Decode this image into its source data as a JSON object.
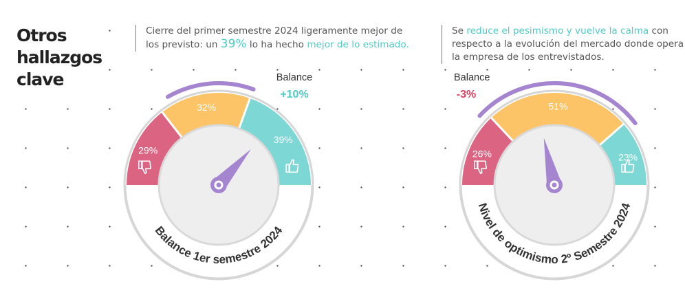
{
  "heading": "Otros\nhallazgos\nclave",
  "notes": [
    {
      "before": "Cierre del primer semestre 2024 ligeramente mejor de los previsto: un ",
      "highlight1": "39%",
      "middle": " lo ha hecho ",
      "highlight2": "mejor de lo estimado."
    },
    {
      "before": "Se ",
      "highlight": "reduce el pesimismo y vuelve la calma",
      "after": " con respecto a la evolución del mercado donde opera la empresa de los entrevistados."
    }
  ],
  "colors": {
    "negative": "#dc6483",
    "neutral": "#fdc467",
    "positive": "#7dd7d5",
    "needle": "#a585d0",
    "arc": "#a585d0",
    "balance_pos": "#4ecbc6",
    "balance_neg": "#d8435f"
  },
  "chart_data": [
    {
      "type": "gauge",
      "title": "Balance 1er semestre 2024",
      "categories": [
        "negativo",
        "igual",
        "positivo"
      ],
      "icons": [
        "thumbs-down-icon",
        "",
        "thumbs-up-icon"
      ],
      "values": [
        29,
        32,
        39
      ],
      "labels": [
        "29%",
        "32%",
        "39%"
      ],
      "balance_label": "Balance",
      "balance_value": "+10%",
      "balance": 10
    },
    {
      "type": "gauge",
      "title": "Nivel de optimismo 2º Semestre 2024",
      "categories": [
        "negativo",
        "igual",
        "positivo"
      ],
      "icons": [
        "thumbs-down-icon",
        "",
        "thumbs-up-icon"
      ],
      "values": [
        26,
        51,
        23
      ],
      "labels": [
        "26%",
        "51%",
        "23%"
      ],
      "balance_label": "Balance",
      "balance_value": "-3%",
      "balance": -3
    }
  ]
}
